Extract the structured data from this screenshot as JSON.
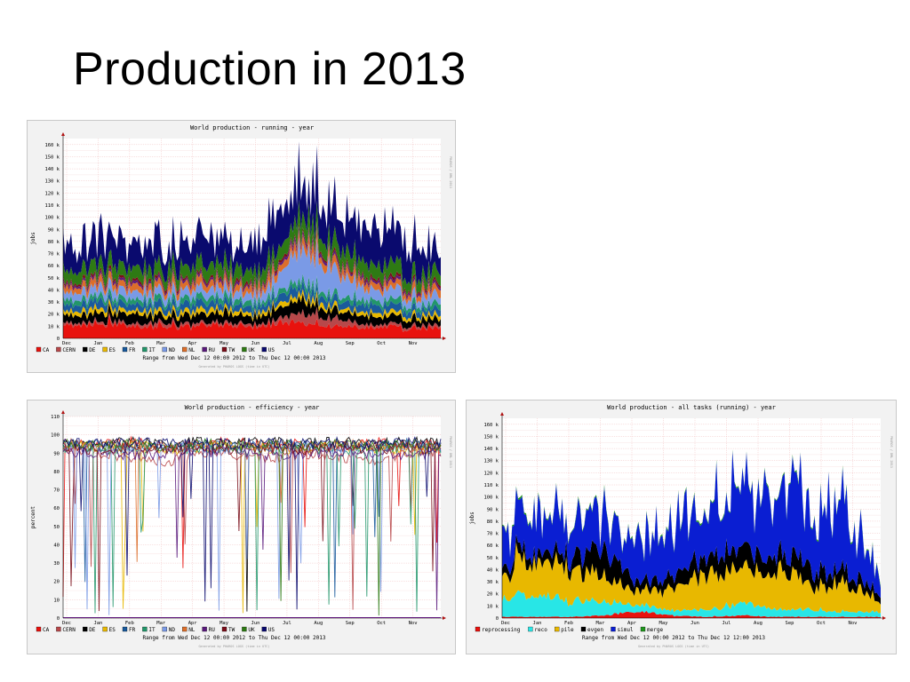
{
  "slide": {
    "title": "Production in 2013"
  },
  "months": [
    "Dec",
    "Jan",
    "Feb",
    "Mar",
    "Apr",
    "May",
    "Jun",
    "Jul",
    "Aug",
    "Sep",
    "Oct",
    "Nov"
  ],
  "chart_data": [
    {
      "id": "running",
      "type": "area",
      "title": "World production - running - year",
      "ylabel": "jobs",
      "ylim": [
        0,
        165
      ],
      "yticks": [
        0,
        10,
        20,
        30,
        40,
        50,
        60,
        70,
        80,
        90,
        100,
        110,
        120,
        130,
        140,
        150,
        160
      ],
      "ytick_labels": [
        "0",
        "10 k",
        "20 k",
        "30 k",
        "40 k",
        "50 k",
        "60 k",
        "70 k",
        "80 k",
        "90 k",
        "100 k",
        "110 k",
        "120 k",
        "130 k",
        "140 k",
        "150 k",
        "160 k"
      ],
      "y_unit": "k jobs",
      "range_text": "Range from Wed Dec 12 00:00 2012  to Thu Dec 12 00:00 2013",
      "generated_text": "Generated by PHAROS LOGS (time in UTC)",
      "side_text": "PHAROS / DML 2013",
      "x": [
        "Dec",
        "Jan",
        "Feb",
        "Mar",
        "Apr",
        "May",
        "Jun",
        "Jul",
        "Aug",
        "Sep",
        "Oct",
        "Nov"
      ],
      "series": [
        {
          "name": "CA",
          "color": "#e8120e",
          "values": [
            10,
            12,
            11,
            10,
            12,
            10,
            11,
            14,
            10,
            9,
            8,
            8
          ]
        },
        {
          "name": "CERN",
          "color": "#b8484a",
          "values": [
            2,
            2,
            2,
            3,
            2,
            2,
            2,
            8,
            6,
            2,
            2,
            2
          ]
        },
        {
          "name": "DE",
          "color": "#000000",
          "values": [
            6,
            7,
            8,
            6,
            8,
            7,
            8,
            10,
            6,
            7,
            6,
            5
          ]
        },
        {
          "name": "ES",
          "color": "#e8b800",
          "values": [
            3,
            4,
            3,
            3,
            4,
            3,
            3,
            4,
            3,
            3,
            3,
            3
          ]
        },
        {
          "name": "FR",
          "color": "#1a5a9c",
          "values": [
            5,
            6,
            5,
            6,
            6,
            5,
            6,
            7,
            6,
            6,
            5,
            5
          ]
        },
        {
          "name": "IT",
          "color": "#22966a",
          "values": [
            4,
            4,
            4,
            4,
            5,
            4,
            4,
            5,
            4,
            4,
            4,
            4
          ]
        },
        {
          "name": "ND",
          "color": "#7a9ae6",
          "values": [
            6,
            7,
            7,
            6,
            7,
            6,
            8,
            26,
            20,
            8,
            7,
            6
          ]
        },
        {
          "name": "NL",
          "color": "#dc6e2a",
          "values": [
            5,
            5,
            5,
            5,
            6,
            5,
            6,
            7,
            6,
            5,
            5,
            5
          ]
        },
        {
          "name": "RU",
          "color": "#5a1a7c",
          "values": [
            2,
            2,
            2,
            2,
            2,
            2,
            2,
            3,
            2,
            2,
            2,
            2
          ]
        },
        {
          "name": "TW",
          "color": "#7a0e1a",
          "values": [
            2,
            2,
            2,
            2,
            2,
            2,
            2,
            2,
            2,
            2,
            2,
            2
          ]
        },
        {
          "name": "UK",
          "color": "#2e7a14",
          "values": [
            10,
            11,
            10,
            10,
            11,
            10,
            11,
            14,
            12,
            11,
            10,
            9
          ]
        },
        {
          "name": "US",
          "color": "#0a0a6e",
          "values": [
            20,
            22,
            18,
            19,
            24,
            18,
            26,
            30,
            26,
            28,
            32,
            14
          ]
        }
      ]
    },
    {
      "id": "efficiency",
      "type": "line",
      "title": "World production - efficiency - year",
      "ylabel": "percent",
      "ylim": [
        0,
        110
      ],
      "yticks": [
        0,
        10,
        20,
        30,
        40,
        50,
        60,
        70,
        80,
        90,
        100,
        110
      ],
      "ytick_labels": [
        "0",
        "10",
        "20",
        "30",
        "40",
        "50",
        "60",
        "70",
        "80",
        "90",
        "100",
        "110"
      ],
      "range_text": "Range from Wed Dec 12 00:00 2012  to Thu Dec 12 00:00 2013",
      "generated_text": "Generated by PHAROS LOGS (time in UTC)",
      "side_text": "PHAROS / DML 2013",
      "x": [
        "Dec",
        "Jan",
        "Feb",
        "Mar",
        "Apr",
        "May",
        "Jun",
        "Jul",
        "Aug",
        "Sep",
        "Oct",
        "Nov"
      ],
      "series": [
        {
          "name": "CA",
          "color": "#e8120e",
          "values": [
            95,
            94,
            96,
            93,
            95,
            96,
            94,
            95,
            93,
            96,
            95,
            94
          ]
        },
        {
          "name": "CERN",
          "color": "#b8484a",
          "values": [
            92,
            90,
            88,
            85,
            91,
            89,
            87,
            90,
            88,
            86,
            90,
            91
          ]
        },
        {
          "name": "DE",
          "color": "#000000",
          "values": [
            96,
            95,
            96,
            95,
            96,
            95,
            96,
            95,
            96,
            95,
            96,
            95
          ]
        },
        {
          "name": "ES",
          "color": "#e8b800",
          "values": [
            94,
            93,
            94,
            92,
            93,
            94,
            93,
            92,
            94,
            93,
            92,
            93
          ]
        },
        {
          "name": "FR",
          "color": "#1a5a9c",
          "values": [
            95,
            94,
            93,
            94,
            95,
            93,
            94,
            95,
            93,
            94,
            95,
            93
          ]
        },
        {
          "name": "IT",
          "color": "#22966a",
          "values": [
            93,
            92,
            91,
            93,
            92,
            91,
            92,
            93,
            91,
            92,
            93,
            92
          ]
        },
        {
          "name": "ND",
          "color": "#7a9ae6",
          "values": [
            94,
            93,
            92,
            94,
            93,
            92,
            93,
            94,
            92,
            93,
            94,
            93
          ]
        },
        {
          "name": "NL",
          "color": "#dc6e2a",
          "values": [
            95,
            94,
            95,
            93,
            94,
            95,
            94,
            93,
            95,
            94,
            93,
            94
          ]
        },
        {
          "name": "RU",
          "color": "#5a1a7c",
          "values": [
            91,
            90,
            89,
            90,
            91,
            90,
            89,
            90,
            91,
            90,
            89,
            90
          ]
        },
        {
          "name": "TW",
          "color": "#7a0e1a",
          "values": [
            93,
            92,
            93,
            92,
            93,
            92,
            93,
            92,
            93,
            92,
            93,
            92
          ]
        },
        {
          "name": "UK",
          "color": "#2e7a14",
          "values": [
            95,
            94,
            95,
            94,
            95,
            94,
            95,
            94,
            95,
            94,
            95,
            94
          ]
        },
        {
          "name": "US",
          "color": "#0a0a6e",
          "values": [
            96,
            95,
            96,
            95,
            96,
            95,
            96,
            95,
            96,
            95,
            96,
            95
          ]
        }
      ]
    },
    {
      "id": "alltasks",
      "type": "area",
      "title": "World production - all tasks (running) - year",
      "ylabel": "jobs",
      "ylim": [
        0,
        165
      ],
      "yticks": [
        0,
        10,
        20,
        30,
        40,
        50,
        60,
        70,
        80,
        90,
        100,
        110,
        120,
        130,
        140,
        150,
        160
      ],
      "ytick_labels": [
        "0",
        "10 k",
        "20 k",
        "30 k",
        "40 k",
        "50 k",
        "60 k",
        "70 k",
        "80 k",
        "90 k",
        "100 k",
        "110 k",
        "120 k",
        "130 k",
        "140 k",
        "150 k",
        "160 k"
      ],
      "y_unit": "k jobs",
      "range_text": "Range from Wed Dec 12 00:00 2012  to Thu Dec 12 12:00 2013",
      "generated_text": "Generated by PHAROS LOGS (time in UTC)",
      "side_text": "PHAROS / DML 2013",
      "x": [
        "Dec",
        "Jan",
        "Feb",
        "Mar",
        "Apr",
        "May",
        "Jun",
        "Jul",
        "Aug",
        "Sep",
        "Oct",
        "Nov"
      ],
      "series": [
        {
          "name": "reprocessing",
          "color": "#e8120e",
          "values": [
            1,
            1,
            1,
            2,
            6,
            2,
            1,
            2,
            1,
            1,
            1,
            1
          ]
        },
        {
          "name": "reco",
          "color": "#28e6e6",
          "values": [
            14,
            18,
            12,
            10,
            6,
            4,
            6,
            10,
            6,
            6,
            4,
            4
          ]
        },
        {
          "name": "pile",
          "color": "#e8b800",
          "values": [
            20,
            30,
            26,
            18,
            12,
            18,
            30,
            28,
            32,
            20,
            22,
            8
          ]
        },
        {
          "name": "evgen",
          "color": "#000000",
          "values": [
            6,
            8,
            10,
            22,
            8,
            10,
            14,
            16,
            14,
            14,
            10,
            6
          ]
        },
        {
          "name": "simul",
          "color": "#0a1ed2",
          "values": [
            30,
            30,
            26,
            30,
            36,
            50,
            36,
            50,
            60,
            44,
            50,
            16
          ]
        },
        {
          "name": "merge",
          "color": "#22961e",
          "values": [
            1,
            1,
            1,
            1,
            1,
            1,
            1,
            1,
            1,
            1,
            1,
            1
          ]
        }
      ]
    }
  ]
}
